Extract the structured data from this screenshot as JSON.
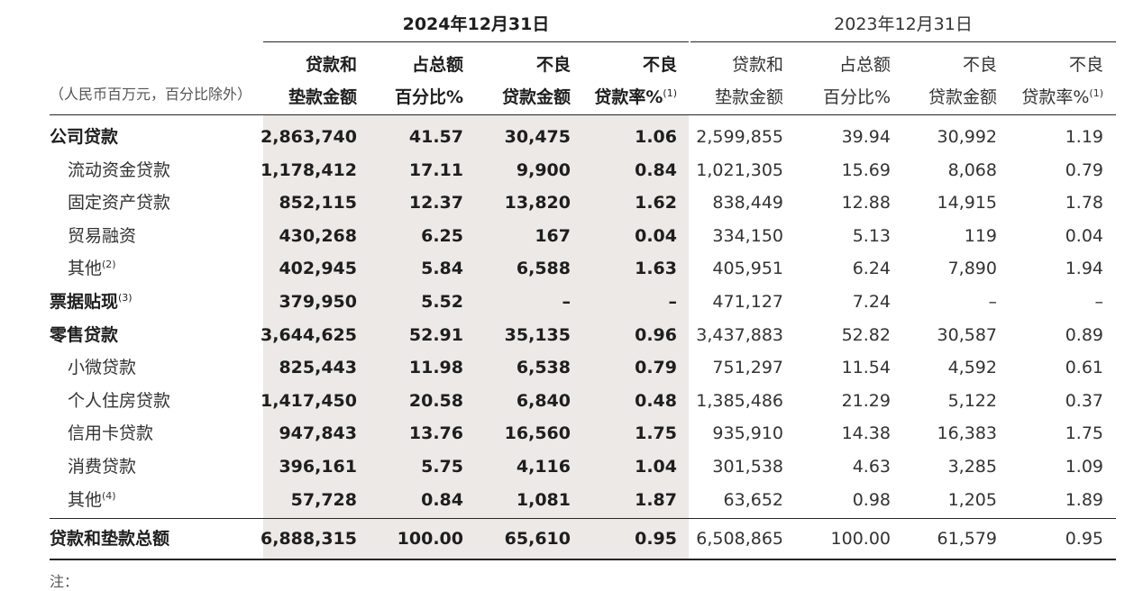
{
  "unit_label": "（人民币百万元，百分比除外）",
  "periods": {
    "current": "2024年12月31日",
    "previous": "2023年12月31日"
  },
  "columns": [
    {
      "line1": "贷款和",
      "line2": "垫款金额",
      "fn": ""
    },
    {
      "line1": "占总额",
      "line2": "百分比%",
      "fn": ""
    },
    {
      "line1": "不良",
      "line2": "贷款金额",
      "fn": ""
    },
    {
      "line1": "不良",
      "line2": "贷款率%",
      "fn": "(1)"
    }
  ],
  "rows": [
    {
      "label": "公司贷款",
      "fn": "",
      "level": "main",
      "values": [
        "2,863,740",
        "41.57",
        "30,475",
        "1.06",
        "2,599,855",
        "39.94",
        "30,992",
        "1.19"
      ]
    },
    {
      "label": "流动资金贷款",
      "fn": "",
      "level": "sub",
      "values": [
        "1,178,412",
        "17.11",
        "9,900",
        "0.84",
        "1,021,305",
        "15.69",
        "8,068",
        "0.79"
      ]
    },
    {
      "label": "固定资产贷款",
      "fn": "",
      "level": "sub",
      "values": [
        "852,115",
        "12.37",
        "13,820",
        "1.62",
        "838,449",
        "12.88",
        "14,915",
        "1.78"
      ]
    },
    {
      "label": "贸易融资",
      "fn": "",
      "level": "sub",
      "values": [
        "430,268",
        "6.25",
        "167",
        "0.04",
        "334,150",
        "5.13",
        "119",
        "0.04"
      ]
    },
    {
      "label": "其他",
      "fn": "(2)",
      "level": "sub",
      "values": [
        "402,945",
        "5.84",
        "6,588",
        "1.63",
        "405,951",
        "6.24",
        "7,890",
        "1.94"
      ]
    },
    {
      "label": "票据贴现",
      "fn": "(3)",
      "level": "main",
      "values": [
        "379,950",
        "5.52",
        "–",
        "–",
        "471,127",
        "7.24",
        "–",
        "–"
      ]
    },
    {
      "label": "零售贷款",
      "fn": "",
      "level": "main",
      "values": [
        "3,644,625",
        "52.91",
        "35,135",
        "0.96",
        "3,437,883",
        "52.82",
        "30,587",
        "0.89"
      ]
    },
    {
      "label": "小微贷款",
      "fn": "",
      "level": "sub",
      "values": [
        "825,443",
        "11.98",
        "6,538",
        "0.79",
        "751,297",
        "11.54",
        "4,592",
        "0.61"
      ]
    },
    {
      "label": "个人住房贷款",
      "fn": "",
      "level": "sub",
      "values": [
        "1,417,450",
        "20.58",
        "6,840",
        "0.48",
        "1,385,486",
        "21.29",
        "5,122",
        "0.37"
      ]
    },
    {
      "label": "信用卡贷款",
      "fn": "",
      "level": "sub",
      "values": [
        "947,843",
        "13.76",
        "16,560",
        "1.75",
        "935,910",
        "14.38",
        "16,383",
        "1.75"
      ]
    },
    {
      "label": "消费贷款",
      "fn": "",
      "level": "sub",
      "values": [
        "396,161",
        "5.75",
        "4,116",
        "1.04",
        "301,538",
        "4.63",
        "3,285",
        "1.09"
      ]
    },
    {
      "label": "其他",
      "fn": "(4)",
      "level": "sub",
      "values": [
        "57,728",
        "0.84",
        "1,081",
        "1.87",
        "63,652",
        "0.98",
        "1,205",
        "1.89"
      ]
    }
  ],
  "total": {
    "label": "贷款和垫款总额",
    "values": [
      "6,888,315",
      "100.00",
      "65,610",
      "0.95",
      "6,508,865",
      "100.00",
      "61,579",
      "0.95"
    ]
  },
  "note_label": "注："
}
